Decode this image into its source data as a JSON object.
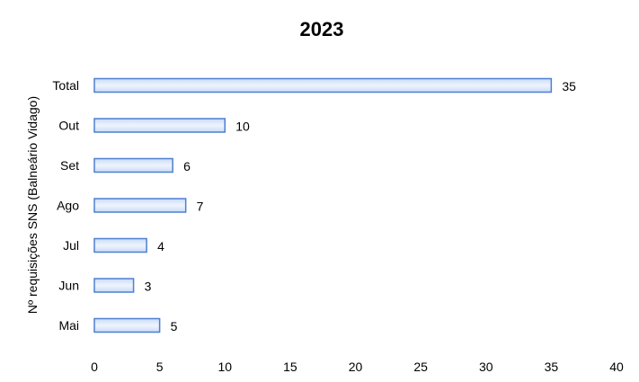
{
  "chart_data": {
    "type": "bar",
    "orientation": "horizontal",
    "title": "2023",
    "ylabel": "Nº requisições SNS (Balneário Vidago)",
    "xlabel": "",
    "categories": [
      "Total",
      "Out",
      "Set",
      "Ago",
      "Jul",
      "Jun",
      "Mai"
    ],
    "values": [
      35,
      10,
      6,
      7,
      4,
      3,
      5
    ],
    "xlim": [
      0,
      40
    ],
    "xticks": [
      0,
      5,
      10,
      15,
      20,
      25,
      30,
      35,
      40
    ],
    "grid": false,
    "legend": "none",
    "data_labels": true,
    "colors": {
      "bar_fill_edge": "#c9dcf7",
      "bar_fill_center": "#eef4fd",
      "bar_stroke": "#4f7fd0"
    }
  }
}
